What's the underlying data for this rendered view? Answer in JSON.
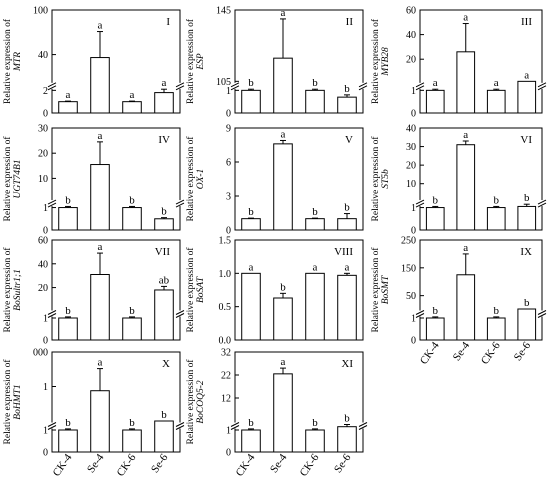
{
  "figure": {
    "ylabel_prefix": "Relative expression of",
    "x_categories": [
      "CK-4",
      "Se-4",
      "CK-6",
      "Se-6"
    ]
  },
  "chart_data": [
    {
      "type": "bar",
      "panel": "I",
      "gene": "MTR",
      "categories": [
        "CK-4",
        "Se-4",
        "CK-6",
        "Se-6"
      ],
      "values": [
        1.0,
        36.0,
        1.0,
        1.8
      ],
      "errors": [
        0.05,
        35.0,
        0.05,
        0.3
      ],
      "significance": [
        "a",
        "a",
        "a",
        "a"
      ],
      "axis_break": true,
      "lower_ticks": [
        "0",
        "2"
      ],
      "upper_ticks": [
        "40",
        "100"
      ],
      "upper_range": [
        4,
        100
      ]
    },
    {
      "type": "bar",
      "panel": "II",
      "gene": "ESP",
      "categories": [
        "CK-4",
        "Se-4",
        "CK-6",
        "Se-6"
      ],
      "values": [
        1.0,
        118.0,
        1.0,
        0.7
      ],
      "errors": [
        0.05,
        22.0,
        0.05,
        0.1
      ],
      "significance": [
        "b",
        "a",
        "b",
        "b"
      ],
      "axis_break": true,
      "lower_ticks": [
        "0",
        "1"
      ],
      "upper_ticks": [
        "105",
        "145"
      ],
      "upper_range": [
        105,
        145
      ]
    },
    {
      "type": "bar",
      "panel": "III",
      "gene": "MYB28",
      "categories": [
        "CK-4",
        "Se-4",
        "CK-6",
        "Se-6"
      ],
      "values": [
        1.0,
        26.0,
        1.0,
        1.3
      ],
      "errors": [
        0.05,
        23.0,
        0.05,
        0.2
      ],
      "significance": [
        "a",
        "a",
        "a",
        "a"
      ],
      "axis_break": true,
      "lower_ticks": [
        "0",
        "1"
      ],
      "upper_ticks": [
        "20",
        "40",
        "60"
      ],
      "upper_range": [
        2,
        60
      ]
    },
    {
      "type": "bar",
      "panel": "IV",
      "gene": "UGT74B1",
      "categories": [
        "CK-4",
        "Se-4",
        "CK-6",
        "Se-6"
      ],
      "values": [
        1.0,
        15.5,
        1.0,
        0.5
      ],
      "errors": [
        0.05,
        9.0,
        0.05,
        0.05
      ],
      "significance": [
        "b",
        "a",
        "b",
        "b"
      ],
      "axis_break": true,
      "lower_ticks": [
        "0",
        "1"
      ],
      "upper_ticks": [
        "10",
        "20",
        "30"
      ],
      "upper_range": [
        2,
        30
      ]
    },
    {
      "type": "bar",
      "panel": "V",
      "gene": "OX-1",
      "categories": [
        "CK-4",
        "Se-4",
        "CK-6",
        "Se-6"
      ],
      "values": [
        1.0,
        7.6,
        1.0,
        1.0
      ],
      "errors": [
        0.05,
        0.3,
        0.05,
        0.45
      ],
      "significance": [
        "b",
        "a",
        "b",
        "b"
      ],
      "axis_break": false,
      "ticks": [
        "0",
        "3",
        "6",
        "9"
      ],
      "ylim": [
        0,
        9
      ]
    },
    {
      "type": "bar",
      "panel": "VI",
      "gene": "ST5b",
      "categories": [
        "CK-4",
        "Se-4",
        "CK-6",
        "Se-6"
      ],
      "values": [
        1.0,
        31.0,
        1.0,
        1.05
      ],
      "errors": [
        0.05,
        2.0,
        0.05,
        0.1
      ],
      "significance": [
        "b",
        "a",
        "b",
        "b"
      ],
      "axis_break": true,
      "lower_ticks": [
        "0",
        "1"
      ],
      "upper_ticks": [
        "10",
        "20",
        "30",
        "40"
      ],
      "upper_range": [
        2,
        40
      ]
    },
    {
      "type": "bar",
      "panel": "VII",
      "gene": "BoSultr1;1",
      "categories": [
        "CK-4",
        "Se-4",
        "CK-6",
        "Se-6"
      ],
      "values": [
        1.0,
        31.0,
        1.0,
        18.0
      ],
      "errors": [
        0.05,
        18.0,
        0.05,
        3.0
      ],
      "significance": [
        "b",
        "a",
        "b",
        "ab"
      ],
      "axis_break": true,
      "lower_ticks": [
        "0",
        "1"
      ],
      "upper_ticks": [
        "20",
        "40",
        "60"
      ],
      "upper_range": [
        2,
        60
      ]
    },
    {
      "type": "bar",
      "panel": "VIII",
      "gene": "BoSAT",
      "categories": [
        "CK-4",
        "Se-4",
        "CK-6",
        "Se-6"
      ],
      "values": [
        1.0,
        0.63,
        1.0,
        0.97
      ],
      "errors": [
        0.0,
        0.07,
        0.0,
        0.03
      ],
      "significance": [
        "a",
        "b",
        "a",
        "a"
      ],
      "axis_break": false,
      "ticks": [
        "0.0",
        "0.5",
        "1.0",
        "1.5"
      ],
      "ylim": [
        0,
        1.5
      ]
    },
    {
      "type": "bar",
      "panel": "IX",
      "gene": "BoSMT",
      "categories": [
        "CK-4",
        "Se-4",
        "CK-6",
        "Se-6"
      ],
      "values": [
        1.0,
        125.0,
        1.0,
        1.45
      ],
      "errors": [
        0.05,
        75.0,
        0.05,
        0.1
      ],
      "significance": [
        "b",
        "a",
        "b",
        "b"
      ],
      "axis_break": true,
      "lower_ticks": [
        "0",
        "1"
      ],
      "upper_ticks": [
        "50",
        "150",
        "250"
      ],
      "upper_range": [
        2,
        250
      ]
    },
    {
      "type": "bar",
      "panel": "X",
      "gene": "BoHMT1",
      "categories": [
        "CK-4",
        "Se-4",
        "CK-6",
        "Se-6"
      ],
      "values": [
        1.0,
        440.0,
        1.0,
        1.45
      ],
      "errors": [
        0.05,
        320.0,
        0.05,
        0.15
      ],
      "significance": [
        "b",
        "a",
        "b",
        "b"
      ],
      "axis_break": true,
      "lower_ticks": [
        "0",
        "1"
      ],
      "upper_ticks": [
        "1",
        "000"
      ],
      "upper_range": [
        2,
        1000
      ]
    },
    {
      "type": "bar",
      "panel": "XI",
      "gene": "BoCOQ5-2",
      "categories": [
        "CK-4",
        "Se-4",
        "CK-6",
        "Se-6"
      ],
      "values": [
        1.0,
        22.5,
        1.0,
        1.15
      ],
      "errors": [
        0.05,
        2.5,
        0.05,
        0.1
      ],
      "significance": [
        "b",
        "a",
        "b",
        "b"
      ],
      "axis_break": true,
      "lower_ticks": [
        "0",
        "1"
      ],
      "upper_ticks": [
        "12",
        "22",
        "32"
      ],
      "upper_range": [
        2,
        32
      ]
    }
  ]
}
